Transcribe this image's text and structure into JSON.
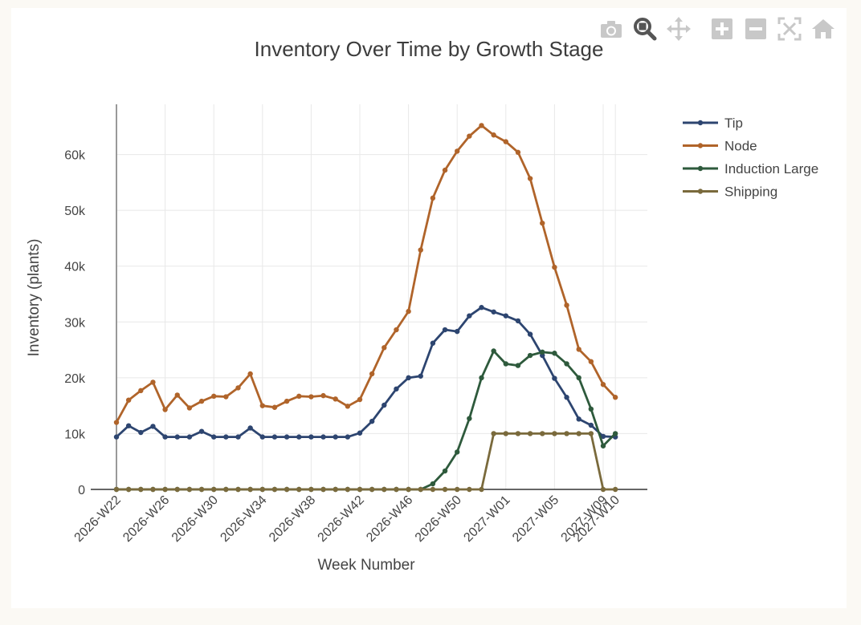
{
  "toolbar": {
    "buttons": [
      {
        "name": "camera-icon"
      },
      {
        "name": "zoom-icon"
      },
      {
        "name": "pan-icon"
      },
      {
        "name": "zoom-in-icon"
      },
      {
        "name": "zoom-out-icon"
      },
      {
        "name": "autoscale-icon"
      },
      {
        "name": "home-icon"
      }
    ]
  },
  "chart_data": {
    "type": "line",
    "title": "Inventory Over Time by Growth Stage",
    "xlabel": "Week Number",
    "ylabel": "Inventory (plants)",
    "ylim": [
      0,
      69000
    ],
    "yticks": [
      0,
      10000,
      20000,
      30000,
      40000,
      50000,
      60000
    ],
    "ytick_labels": [
      "0",
      "10k",
      "20k",
      "30k",
      "40k",
      "50k",
      "60k"
    ],
    "xtick_labels": [
      "2026-W22",
      "2026-W26",
      "2026-W30",
      "2026-W34",
      "2026-W38",
      "2026-W42",
      "2026-W46",
      "2026-W50",
      "2027-W01",
      "2027-W05",
      "2027-W09",
      "2027-W10"
    ],
    "grid": true,
    "legend_position": "top-right",
    "x": [
      "2026-W22",
      "2026-W23",
      "2026-W24",
      "2026-W25",
      "2026-W26",
      "2026-W27",
      "2026-W28",
      "2026-W29",
      "2026-W30",
      "2026-W31",
      "2026-W32",
      "2026-W33",
      "2026-W34",
      "2026-W35",
      "2026-W36",
      "2026-W37",
      "2026-W38",
      "2026-W39",
      "2026-W40",
      "2026-W41",
      "2026-W42",
      "2026-W43",
      "2026-W44",
      "2026-W45",
      "2026-W46",
      "2026-W47",
      "2026-W48",
      "2026-W49",
      "2026-W50",
      "2026-W51",
      "2026-W52",
      "2026-W53",
      "2027-W01",
      "2027-W02",
      "2027-W03",
      "2027-W04",
      "2027-W05",
      "2027-W06",
      "2027-W07",
      "2027-W08",
      "2027-W09",
      "2027-W10"
    ],
    "series": [
      {
        "name": "Tip",
        "color": "#2d4570",
        "values": [
          9400,
          11400,
          10200,
          11300,
          9400,
          9400,
          9400,
          10400,
          9400,
          9400,
          9400,
          11000,
          9400,
          9400,
          9400,
          9400,
          9400,
          9400,
          9400,
          9400,
          10100,
          12200,
          15100,
          18000,
          20000,
          20300,
          26200,
          28600,
          28300,
          31100,
          32600,
          31800,
          31100,
          30200,
          27800,
          24000,
          19900,
          16500,
          12600,
          11500,
          9500,
          9400
        ]
      },
      {
        "name": "Node",
        "color": "#b0642a",
        "values": [
          12000,
          16000,
          17700,
          19200,
          14300,
          16900,
          14600,
          15800,
          16700,
          16600,
          18200,
          20700,
          15000,
          14700,
          15800,
          16700,
          16600,
          16800,
          16200,
          14900,
          16100,
          20700,
          25400,
          28600,
          31900,
          42900,
          52200,
          57200,
          60600,
          63300,
          65200,
          63500,
          62300,
          60400,
          55700,
          47700,
          39800,
          33000,
          25100,
          22900,
          18800,
          16500
        ]
      },
      {
        "name": "Induction Large",
        "color": "#2e5a3c",
        "values": [
          0,
          0,
          0,
          0,
          0,
          0,
          0,
          0,
          0,
          0,
          0,
          0,
          0,
          0,
          0,
          0,
          0,
          0,
          0,
          0,
          0,
          0,
          0,
          0,
          0,
          0,
          1000,
          3300,
          6700,
          12700,
          20000,
          24800,
          22500,
          22200,
          24000,
          24600,
          24400,
          22500,
          20000,
          14400,
          7800,
          10000
        ]
      },
      {
        "name": "Shipping",
        "color": "#7a6a3c",
        "values": [
          0,
          0,
          0,
          0,
          0,
          0,
          0,
          0,
          0,
          0,
          0,
          0,
          0,
          0,
          0,
          0,
          0,
          0,
          0,
          0,
          0,
          0,
          0,
          0,
          0,
          0,
          0,
          0,
          0,
          0,
          0,
          10000,
          10000,
          10000,
          10000,
          10000,
          10000,
          10000,
          10000,
          10000,
          0,
          0
        ]
      }
    ]
  }
}
